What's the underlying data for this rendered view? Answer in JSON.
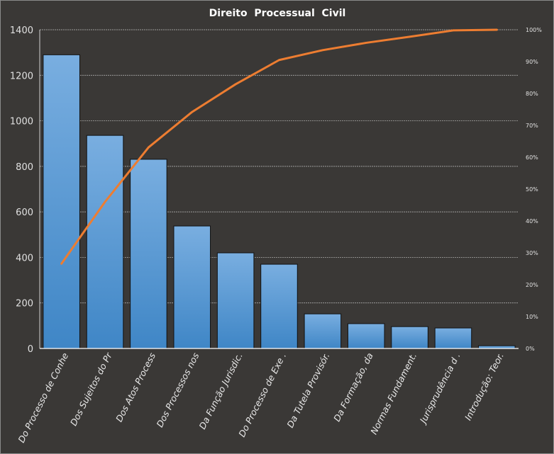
{
  "chart_data": {
    "type": "bar",
    "title": "Direito  Processual  Civil",
    "categories": [
      "Do Processo de Conhe",
      "Dos Sujeitos do Pr",
      "Dos Atos Process",
      "Dos Processos nos",
      "Da Função Jurisdic.",
      "Do Processo de Exe .",
      "Da Tutela Provisór.",
      "Da Formação,  da",
      "Normas Fundament.",
      "Jurisprudência d .",
      "Introdução:  Teor."
    ],
    "values": [
      1290,
      936,
      831,
      538,
      420,
      370,
      152,
      109,
      96,
      90,
      12
    ],
    "ylim": [
      0,
      1400
    ],
    "yticks": [
      0,
      200,
      400,
      600,
      800,
      1000,
      1200,
      1400
    ],
    "y2lim": [
      0,
      100
    ],
    "y2ticks": [
      "0%",
      "10%",
      "20%",
      "30%",
      "40%",
      "50%",
      "60%",
      "70%",
      "80%",
      "90%",
      "100%"
    ],
    "series": [
      {
        "name": "Count",
        "type": "bar",
        "values": [
          1290,
          936,
          831,
          538,
          420,
          370,
          152,
          109,
          96,
          90,
          12
        ]
      },
      {
        "name": "Cumulative %",
        "type": "line",
        "axis": "right",
        "values": [
          26.6,
          46.0,
          63.1,
          74.2,
          82.9,
          90.5,
          93.6,
          95.9,
          97.8,
          99.8,
          100
        ]
      }
    ],
    "grid": true,
    "legend": "none",
    "colors": {
      "bar": "#5b9bd5",
      "bar_top": "#79aee0",
      "line": "#ed7d31",
      "background": "#3a3836",
      "text": "#e0e0e0"
    }
  }
}
